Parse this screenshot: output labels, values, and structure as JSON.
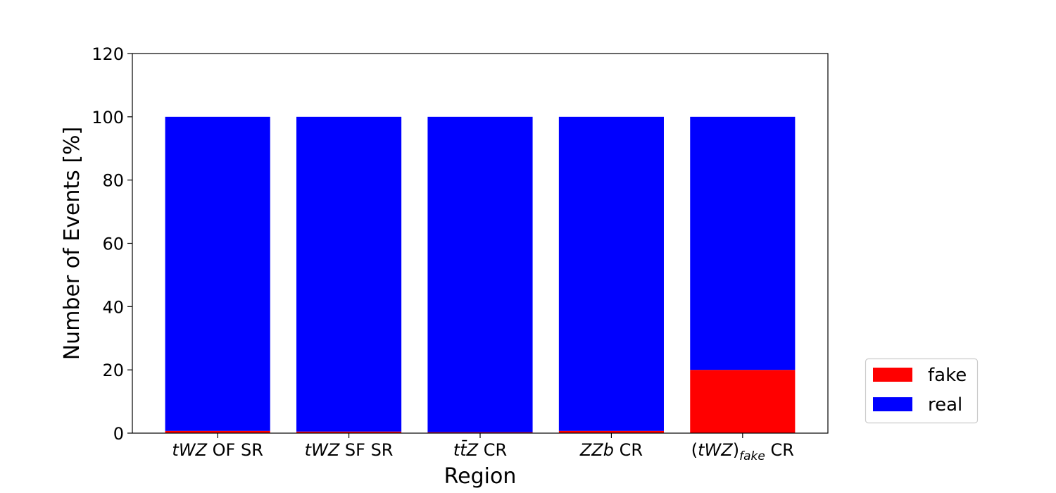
{
  "chart_data": {
    "type": "bar",
    "stacked": true,
    "categories": [
      [
        "tWZ",
        " OF SR"
      ],
      [
        "tWZ",
        " SF SR"
      ],
      [
        "tt̄Z",
        " CR"
      ],
      [
        "ZZb",
        " CR"
      ],
      [
        "(tWZ)",
        "fake",
        " CR"
      ]
    ],
    "series": [
      {
        "name": "fake",
        "color": "#ff0000",
        "values": [
          0.7,
          0.5,
          0.3,
          0.7,
          20
        ]
      },
      {
        "name": "real",
        "color": "#0000ff",
        "values": [
          99.3,
          99.5,
          99.7,
          99.3,
          80
        ]
      }
    ],
    "xlabel": "Region",
    "ylabel": "Number of Events [%]",
    "ylim": [
      0,
      120
    ],
    "yticks": [
      0,
      20,
      40,
      60,
      80,
      100,
      120
    ],
    "grid": false,
    "legend_position": "lower-right outside"
  }
}
